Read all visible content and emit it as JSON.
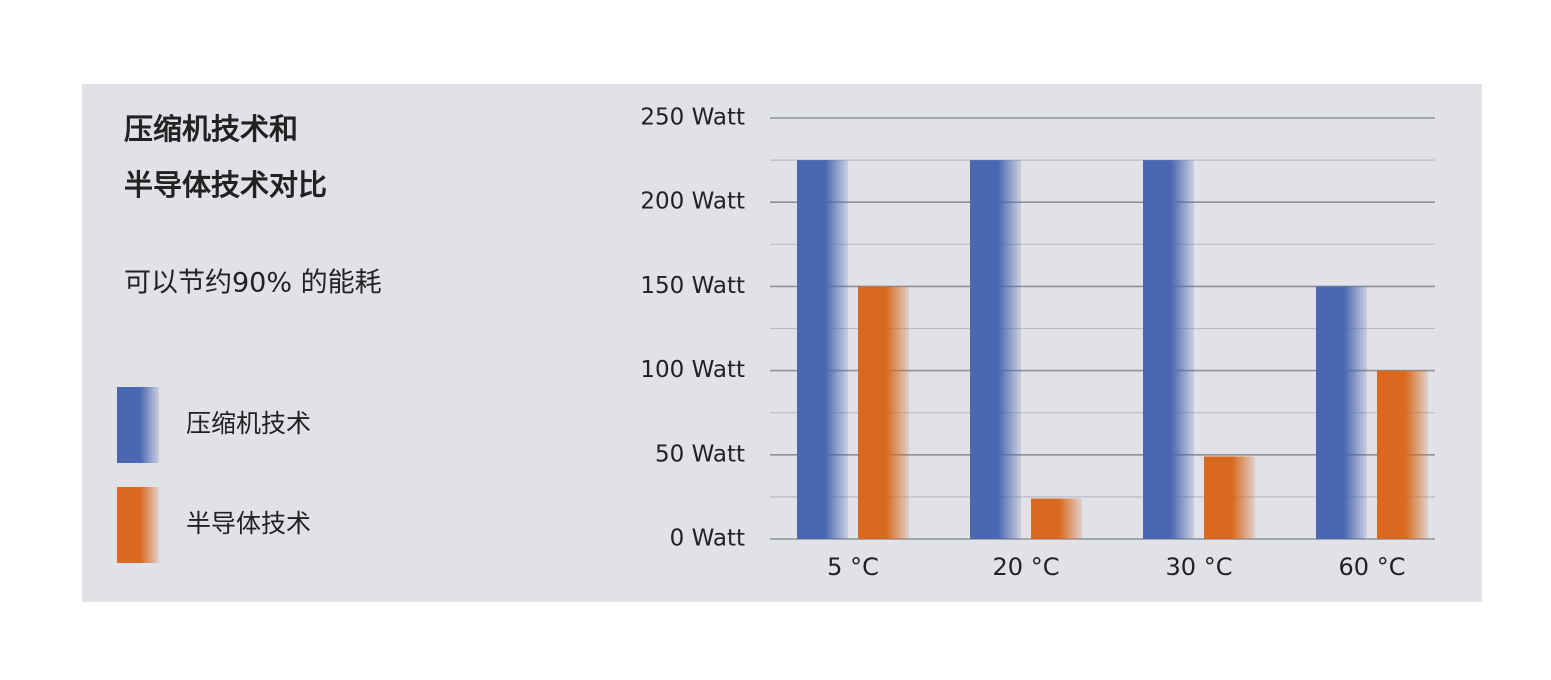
{
  "chart_data": {
    "type": "bar",
    "title": [
      "压缩机技术和",
      "半导体技术对比"
    ],
    "subtitle": "可以节约90% 的能耗",
    "categories": [
      "5 °C",
      "20 °C",
      "30 °C",
      "60 °C"
    ],
    "series": [
      {
        "name": "压缩机技术",
        "color": "#4a67b1",
        "values": [
          225,
          225,
          225,
          150
        ]
      },
      {
        "name": "半导体技术",
        "color": "#d9691f",
        "values": [
          150,
          24,
          49,
          100
        ]
      }
    ],
    "ylim": [
      0,
      250
    ],
    "yticks": [
      {
        "value": 0,
        "label": "0 Watt"
      },
      {
        "value": 50,
        "label": "50 Watt"
      },
      {
        "value": 100,
        "label": "100 Watt"
      },
      {
        "value": 150,
        "label": "150 Watt"
      },
      {
        "value": 200,
        "label": "200 Watt"
      },
      {
        "value": 250,
        "label": "250 Watt"
      }
    ],
    "minor_yticks": [
      25,
      75,
      125,
      175,
      225
    ],
    "grid": true
  }
}
